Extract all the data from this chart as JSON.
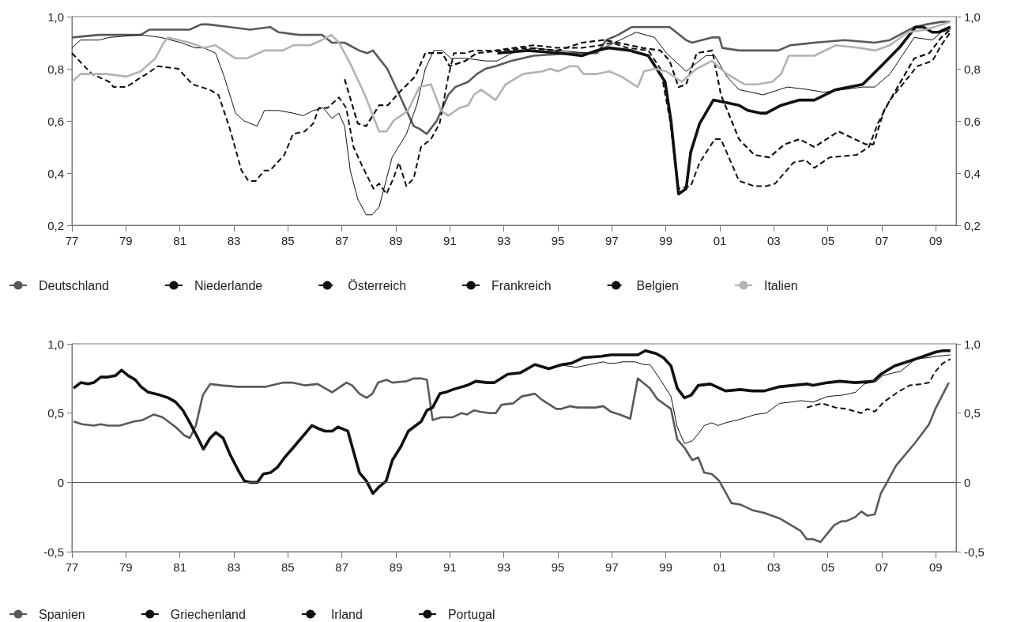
{
  "chart_data": [
    {
      "type": "line",
      "marker": "none",
      "legend": "bottom",
      "xlim": [
        1977,
        2009.75
      ],
      "xticks": [
        {
          "value": 1977,
          "label": "77"
        },
        {
          "value": 1979,
          "label": "79"
        },
        {
          "value": 1981,
          "label": "81"
        },
        {
          "value": 1983,
          "label": "83"
        },
        {
          "value": 1985,
          "label": "85"
        },
        {
          "value": 1987,
          "label": "87"
        },
        {
          "value": 1989,
          "label": "89"
        },
        {
          "value": 1991,
          "label": "91"
        },
        {
          "value": 1993,
          "label": "93"
        },
        {
          "value": 1995,
          "label": "95"
        },
        {
          "value": 1997,
          "label": "97"
        },
        {
          "value": 1999,
          "label": "99"
        },
        {
          "value": 2001,
          "label": "01"
        },
        {
          "value": 2003,
          "label": "03"
        },
        {
          "value": 2005,
          "label": "05"
        },
        {
          "value": 2007,
          "label": "07"
        },
        {
          "value": 2009,
          "label": "09"
        }
      ],
      "ylim": [
        0.2,
        1
      ],
      "yticks": [
        {
          "value": 0.2,
          "label": "0,2"
        },
        {
          "value": 0.4,
          "label": "0,4"
        },
        {
          "value": 0.6,
          "label": "0,6"
        },
        {
          "value": 0.8,
          "label": "0,8"
        },
        {
          "value": 1,
          "label": "1,0"
        }
      ],
      "y2lim": [
        0.2,
        1
      ],
      "y2ticks": [
        {
          "value": 0.2,
          "label": "0,2"
        },
        {
          "value": 0.4,
          "label": "0,4"
        },
        {
          "value": 0.6,
          "label": "0,6"
        },
        {
          "value": 0.8,
          "label": "0,8"
        },
        {
          "value": 1,
          "label": "1,0"
        }
      ],
      "series": [
        {
          "name": "Deutschland",
          "color": "#595959",
          "line_style": "solid",
          "x": [
            1977,
            1978,
            1979,
            1979.55,
            1979.87,
            1980.3,
            1980.72,
            1981.36,
            1981.79,
            1982.05,
            1982.85,
            1983.6,
            1984.34,
            1984.66,
            1985.4,
            1986.26,
            1986.63,
            1987.1,
            1987.64,
            1987.94,
            1988.15,
            1988.68,
            1989.13,
            1989.66,
            1989.87,
            1990.14,
            1990.51,
            1990.94,
            1991.2,
            1991.68,
            1992,
            1992.32,
            1992.69,
            1993.28,
            1994.1,
            1995.56,
            1996.45,
            1996.79,
            1997.23,
            1997.74,
            1998.46,
            1999.14,
            1999.75,
            1999.97,
            2000.7,
            2000.98,
            2001.09,
            2001.71,
            2002.27,
            2003.16,
            2003.61,
            2004.5,
            2005.62,
            2006.74,
            2007.3,
            2008.2,
            2008.64,
            2009.2,
            2009.54
          ],
          "values": [
            0.92,
            0.93,
            0.93,
            0.93,
            0.95,
            0.95,
            0.95,
            0.95,
            0.97,
            0.97,
            0.96,
            0.95,
            0.96,
            0.94,
            0.93,
            0.93,
            0.9,
            0.9,
            0.87,
            0.86,
            0.87,
            0.8,
            0.7,
            0.58,
            0.57,
            0.55,
            0.6,
            0.7,
            0.73,
            0.75,
            0.78,
            0.8,
            0.81,
            0.83,
            0.85,
            0.86,
            0.86,
            0.91,
            0.93,
            0.96,
            0.96,
            0.96,
            0.91,
            0.9,
            0.92,
            0.92,
            0.88,
            0.87,
            0.87,
            0.87,
            0.89,
            0.9,
            0.91,
            0.9,
            0.91,
            0.96,
            0.97,
            0.98,
            0.98
          ]
        },
        {
          "name": "Niederlande",
          "color": "#111111",
          "line_style": "solid",
          "x": [
            1992.76,
            1993.88,
            1995.11,
            1995.89,
            1996.45,
            1996.9,
            1997.68,
            1998.35,
            1998.97,
            1999.19,
            1999.47,
            1999.75,
            1999.92,
            2000.25,
            2000.76,
            2001.26,
            2001.71,
            2002.04,
            2002.49,
            2002.72,
            2003.27,
            2003.95,
            2004.5,
            2005.29,
            2006.29,
            2006.97,
            2007.64,
            2008.25,
            2008.53,
            2008.87,
            2009.09,
            2009.32,
            2009.54
          ],
          "values": [
            0.86,
            0.87,
            0.86,
            0.85,
            0.87,
            0.88,
            0.87,
            0.85,
            0.75,
            0.6,
            0.32,
            0.34,
            0.48,
            0.59,
            0.68,
            0.67,
            0.66,
            0.64,
            0.63,
            0.63,
            0.66,
            0.68,
            0.68,
            0.72,
            0.74,
            0.81,
            0.88,
            0.96,
            0.96,
            0.94,
            0.94,
            0.95,
            0.96
          ]
        },
        {
          "name": "Österreich",
          "color": "#111111",
          "line_style": "dashed",
          "x": [
            1977,
            1977.74,
            1978.38,
            1978.54,
            1979.02,
            1979.45,
            1979.77,
            1980.19,
            1980.94,
            1981.47,
            1982.1,
            1982.43,
            1982.85,
            1983.28,
            1983.54,
            1983.81,
            1984.13,
            1984.34,
            1984.87,
            1985.19,
            1985.62,
            1985.94,
            1986.15,
            1986.47,
            1986.89,
            1987.16,
            1987.43,
            1987.74,
            1988.17,
            1988.38,
            1988.65,
            1988.91,
            1989.11,
            1989.39,
            1989.66,
            1989.93,
            1990.3,
            1990.62,
            1990.94,
            1991.15,
            1991.57,
            1991.89,
            1992.64,
            1994.1,
            1995.0,
            1995.89,
            1996.56,
            1997.01,
            1997.57,
            1998.35,
            1998.8,
            1999.14,
            1999.47,
            1999.92,
            2000.25,
            2000.81,
            2001.04,
            2001.71,
            2002.27,
            2002.72,
            2003.05,
            2003.72,
            2004.17,
            2004.5,
            2005.06,
            2006.07,
            2006.52,
            2006.85,
            2007.3,
            2008.31,
            2008.87,
            2009.2,
            2009.54
          ],
          "values": [
            0.86,
            0.78,
            0.75,
            0.73,
            0.73,
            0.76,
            0.78,
            0.81,
            0.8,
            0.74,
            0.72,
            0.7,
            0.57,
            0.41,
            0.37,
            0.37,
            0.41,
            0.41,
            0.47,
            0.55,
            0.56,
            0.59,
            0.65,
            0.65,
            0.69,
            0.65,
            0.5,
            0.43,
            0.34,
            0.36,
            0.32,
            0.38,
            0.44,
            0.35,
            0.38,
            0.5,
            0.53,
            0.59,
            0.77,
            0.86,
            0.86,
            0.87,
            0.87,
            0.89,
            0.88,
            0.88,
            0.89,
            0.9,
            0.88,
            0.87,
            0.8,
            0.61,
            0.34,
            0.35,
            0.44,
            0.53,
            0.53,
            0.37,
            0.35,
            0.35,
            0.36,
            0.44,
            0.45,
            0.42,
            0.46,
            0.47,
            0.5,
            0.59,
            0.68,
            0.81,
            0.83,
            0.89,
            0.94
          ]
        },
        {
          "name": "Frankreich",
          "color": "#111111",
          "line_style": "solid",
          "x": [
            1977,
            1977.32,
            1978.01,
            1978.38,
            1979.55,
            1980.3,
            1981.04,
            1981.57,
            1981.89,
            1982.32,
            1982.64,
            1983.06,
            1983.38,
            1983.86,
            1984.13,
            1984.66,
            1985.19,
            1985.57,
            1985.94,
            1986.31,
            1986.63,
            1986.89,
            1987.1,
            1987.31,
            1987.59,
            1987.9,
            1988.12,
            1988.38,
            1988.86,
            1989.39,
            1989.77,
            1990.09,
            1990.4,
            1990.72,
            1991.04,
            1991.57,
            1992.32,
            1992.74,
            1993.3,
            1994.1,
            1995.0,
            1996.12,
            1996.9,
            1997.9,
            1998.58,
            1999.02,
            1999.75,
            2000.48,
            2000.81,
            2001.26,
            2001.71,
            2002.6,
            2003.5,
            2004.28,
            2004.84,
            2006.29,
            2006.74,
            2007.3,
            2008.2,
            2008.87,
            2009.2,
            2009.54
          ],
          "values": [
            0.88,
            0.91,
            0.91,
            0.92,
            0.93,
            0.92,
            0.9,
            0.88,
            0.88,
            0.86,
            0.77,
            0.63,
            0.6,
            0.58,
            0.64,
            0.64,
            0.63,
            0.62,
            0.64,
            0.65,
            0.61,
            0.63,
            0.58,
            0.41,
            0.3,
            0.24,
            0.24,
            0.27,
            0.46,
            0.55,
            0.66,
            0.8,
            0.87,
            0.87,
            0.84,
            0.84,
            0.83,
            0.83,
            0.86,
            0.88,
            0.87,
            0.86,
            0.89,
            0.94,
            0.92,
            0.86,
            0.79,
            0.85,
            0.85,
            0.77,
            0.72,
            0.7,
            0.73,
            0.72,
            0.71,
            0.73,
            0.73,
            0.78,
            0.92,
            0.91,
            0.94,
            0.95
          ]
        },
        {
          "name": "Belgien",
          "color": "#111111",
          "line_style": "dashed",
          "x": [
            1987.1,
            1987.59,
            1987.9,
            1988.38,
            1988.7,
            1989.13,
            1989.71,
            1990.09,
            1990.72,
            1990.99,
            1991.57,
            1991.99,
            1992.96,
            1993.88,
            1995.0,
            1995.89,
            1996.68,
            1997.23,
            1998.13,
            1998.8,
            1999.14,
            1999.47,
            1999.75,
            2000.14,
            2000.72,
            2001.04,
            2001.71,
            2002.27,
            2002.83,
            2003.39,
            2003.95,
            2004.5,
            2005.4,
            2006.41,
            2006.69,
            2007.08,
            2008.2,
            2008.76,
            2009.2,
            2009.54
          ],
          "values": [
            0.76,
            0.59,
            0.58,
            0.66,
            0.66,
            0.71,
            0.77,
            0.86,
            0.86,
            0.81,
            0.83,
            0.86,
            0.87,
            0.88,
            0.87,
            0.9,
            0.91,
            0.9,
            0.88,
            0.87,
            0.83,
            0.73,
            0.74,
            0.86,
            0.87,
            0.7,
            0.53,
            0.47,
            0.46,
            0.51,
            0.53,
            0.5,
            0.56,
            0.51,
            0.51,
            0.64,
            0.84,
            0.86,
            0.92,
            0.95
          ]
        },
        {
          "name": "Italien",
          "color": "#b3b3b3",
          "line_style": "solid",
          "x": [
            1977,
            1977.32,
            1978.28,
            1979.02,
            1979.55,
            1980.09,
            1980.4,
            1980.56,
            1981.36,
            1981.89,
            1982.32,
            1983.06,
            1983.49,
            1984.13,
            1984.82,
            1985.19,
            1985.83,
            1986.26,
            1986.61,
            1986.89,
            1987.31,
            1987.85,
            1988.38,
            1988.65,
            1988.91,
            1989.45,
            1989.87,
            1990.3,
            1990.67,
            1990.94,
            1991.36,
            1991.68,
            1991.89,
            1992.16,
            1992.69,
            1993.06,
            1993.71,
            1994.44,
            1994.72,
            1995.0,
            1995.44,
            1995.72,
            1995.95,
            1996.45,
            1996.9,
            1997.35,
            1997.96,
            1998.19,
            1998.58,
            1999.02,
            1999.58,
            2000.14,
            2000.7,
            2001.26,
            2001.93,
            2002.38,
            2002.94,
            2003.27,
            2003.55,
            2003.95,
            2004.5,
            2005.29,
            2006.18,
            2006.74,
            2007.3,
            2007.97,
            2008.64,
            2009.54
          ],
          "values": [
            0.75,
            0.78,
            0.78,
            0.77,
            0.79,
            0.84,
            0.9,
            0.92,
            0.9,
            0.88,
            0.89,
            0.84,
            0.84,
            0.87,
            0.87,
            0.89,
            0.89,
            0.91,
            0.93,
            0.9,
            0.82,
            0.7,
            0.56,
            0.56,
            0.6,
            0.64,
            0.73,
            0.74,
            0.64,
            0.62,
            0.65,
            0.66,
            0.7,
            0.72,
            0.68,
            0.74,
            0.78,
            0.79,
            0.8,
            0.79,
            0.81,
            0.81,
            0.78,
            0.78,
            0.79,
            0.77,
            0.73,
            0.79,
            0.8,
            0.79,
            0.75,
            0.8,
            0.83,
            0.78,
            0.74,
            0.74,
            0.75,
            0.78,
            0.85,
            0.85,
            0.85,
            0.89,
            0.88,
            0.87,
            0.89,
            0.94,
            0.95,
            0.98
          ]
        }
      ]
    },
    {
      "type": "line",
      "marker": "none",
      "legend": "bottom",
      "xlim": [
        1977,
        2009.75
      ],
      "xticks": [
        {
          "value": 1977,
          "label": "77"
        },
        {
          "value": 1979,
          "label": "79"
        },
        {
          "value": 1981,
          "label": "81"
        },
        {
          "value": 1983,
          "label": "83"
        },
        {
          "value": 1985,
          "label": "85"
        },
        {
          "value": 1987,
          "label": "87"
        },
        {
          "value": 1989,
          "label": "89"
        },
        {
          "value": 1991,
          "label": "91"
        },
        {
          "value": 1993,
          "label": "93"
        },
        {
          "value": 1995,
          "label": "95"
        },
        {
          "value": 1997,
          "label": "97"
        },
        {
          "value": 1999,
          "label": "99"
        },
        {
          "value": 2001,
          "label": "01"
        },
        {
          "value": 2003,
          "label": "03"
        },
        {
          "value": 2005,
          "label": "05"
        },
        {
          "value": 2007,
          "label": "07"
        },
        {
          "value": 2009,
          "label": "09"
        }
      ],
      "ylim": [
        -0.5,
        1
      ],
      "yticks": [
        {
          "value": -0.5,
          "label": "-0,5"
        },
        0,
        {
          "value": 0.5,
          "label": "0,5"
        },
        {
          "value": 1,
          "label": "1,0"
        }
      ],
      "y2lim": [
        -0.5,
        1
      ],
      "y2ticks": [
        {
          "value": -0.5,
          "label": "-0,5"
        },
        0,
        {
          "value": 0.5,
          "label": "0,5"
        },
        {
          "value": 1,
          "label": "1,0"
        }
      ],
      "ref_lines": [
        {
          "axis": "y",
          "value": 0,
          "color": "#555555",
          "line_style": "solid"
        }
      ],
      "series": [
        {
          "name": "Spanien",
          "color": "#595959",
          "line_style": "solid",
          "x": [
            1977.06,
            1977.38,
            1977.81,
            1978.07,
            1978.34,
            1978.77,
            1979.3,
            1979.62,
            1980.04,
            1980.36,
            1980.84,
            1981.16,
            1981.37,
            1981.59,
            1981.85,
            1982.12,
            1982.54,
            1983.13,
            1984.19,
            1984.83,
            1985.15,
            1985.63,
            1986.1,
            1986.37,
            1986.64,
            1987.17,
            1987.38,
            1987.65,
            1987.91,
            1988.13,
            1988.34,
            1988.66,
            1988.87,
            1989.4,
            1989.67,
            1989.94,
            1990.15,
            1990.36,
            1990.68,
            1991.11,
            1991.43,
            1991.64,
            1991.9,
            1992.12,
            1992.49,
            1992.7,
            1992.91,
            1993.34,
            1993.66,
            1994.15,
            1994.38,
            1994.94,
            1995.11,
            1995.44,
            1995.72,
            1996.4,
            1996.68,
            1996.96,
            1997.29,
            1997.68,
            1997.96,
            1998.4,
            1998.69,
            1999.19,
            1999.42,
            1999.69,
            1999.98,
            2000.2,
            2000.42,
            2000.7,
            2000.98,
            2001.43,
            2001.76,
            2002.2,
            2002.65,
            2002.93,
            2003.21,
            2003.99,
            2004.22,
            2004.45,
            2004.73,
            2005.23,
            2005.51,
            2005.68,
            2006.02,
            2006.24,
            2006.46,
            2006.74,
            2006.96,
            2007.19,
            2007.52,
            2008.25,
            2008.75,
            2008.98,
            2009.48
          ],
          "values": [
            0.44,
            0.42,
            0.41,
            0.42,
            0.41,
            0.41,
            0.44,
            0.45,
            0.49,
            0.47,
            0.4,
            0.34,
            0.32,
            0.41,
            0.63,
            0.71,
            0.7,
            0.69,
            0.69,
            0.72,
            0.72,
            0.7,
            0.71,
            0.68,
            0.65,
            0.72,
            0.7,
            0.64,
            0.61,
            0.64,
            0.72,
            0.74,
            0.72,
            0.73,
            0.75,
            0.75,
            0.74,
            0.45,
            0.47,
            0.47,
            0.5,
            0.49,
            0.52,
            0.51,
            0.5,
            0.5,
            0.56,
            0.57,
            0.62,
            0.64,
            0.6,
            0.53,
            0.53,
            0.55,
            0.54,
            0.54,
            0.55,
            0.51,
            0.49,
            0.46,
            0.75,
            0.68,
            0.6,
            0.53,
            0.31,
            0.25,
            0.16,
            0.18,
            0.07,
            0.06,
            0.01,
            -0.15,
            -0.16,
            -0.2,
            -0.22,
            -0.24,
            -0.26,
            -0.35,
            -0.41,
            -0.41,
            -0.43,
            -0.31,
            -0.28,
            -0.28,
            -0.25,
            -0.21,
            -0.24,
            -0.23,
            -0.08,
            0,
            0.12,
            0.29,
            0.42,
            0.53,
            0.72
          ]
        },
        {
          "name": "Griechenland",
          "color": "#111111",
          "line_style": "solid",
          "x": [
            1977.06,
            1977.33,
            1977.6,
            1977.81,
            1978.07,
            1978.34,
            1978.61,
            1978.84,
            1979.09,
            1979.35,
            1979.56,
            1979.83,
            1980.26,
            1980.57,
            1980.84,
            1981.11,
            1981.37,
            1981.64,
            1981.87,
            1982.12,
            1982.33,
            1982.6,
            1982.86,
            1983.18,
            1983.39,
            1983.6,
            1983.87,
            1984.09,
            1984.35,
            1984.62,
            1984.88,
            1985.15,
            1985.41,
            1985.89,
            1986.11,
            1986.37,
            1986.64,
            1986.85,
            1987.22,
            1987.65,
            1987.91,
            1988.15,
            1988.39,
            1988.64,
            1988.87,
            1989.19,
            1989.46,
            1989.94,
            1990.15,
            1990.36,
            1990.63,
            1990.84,
            1991.11,
            1991.64,
            1991.96,
            1992.38,
            1992.65,
            1993.14,
            1993.6,
            1994.15,
            1994.66,
            1995.16,
            1995.5,
            1995.94,
            1996.62,
            1996.96,
            1997.4,
            1997.96,
            1998.24,
            1998.63,
            1998.91,
            1999.19,
            1999.42,
            1999.69,
            1999.94,
            2000.2,
            2000.65,
            2001.21,
            2001.76,
            2002.2,
            2002.65,
            2003.21,
            2004.22,
            2004.45,
            2005,
            2005.44,
            2006.02,
            2006.69,
            2006.96,
            2007.47,
            2008.25,
            2008.7,
            2008.98,
            2009.26,
            2009.54
          ],
          "values": [
            0.68,
            0.72,
            0.71,
            0.72,
            0.76,
            0.76,
            0.77,
            0.81,
            0.77,
            0.74,
            0.69,
            0.65,
            0.63,
            0.61,
            0.58,
            0.52,
            0.43,
            0.33,
            0.24,
            0.32,
            0.36,
            0.32,
            0.2,
            0.08,
            0.01,
            0,
            0,
            0.06,
            0.07,
            0.11,
            0.18,
            0.24,
            0.3,
            0.41,
            0.39,
            0.37,
            0.37,
            0.4,
            0.37,
            0.07,
            0.01,
            -0.08,
            -0.03,
            0.01,
            0.16,
            0.26,
            0.37,
            0.44,
            0.52,
            0.54,
            0.64,
            0.65,
            0.67,
            0.7,
            0.73,
            0.72,
            0.72,
            0.78,
            0.79,
            0.85,
            0.82,
            0.85,
            0.86,
            0.9,
            0.91,
            0.92,
            0.92,
            0.92,
            0.95,
            0.93,
            0.9,
            0.84,
            0.68,
            0.61,
            0.63,
            0.7,
            0.71,
            0.66,
            0.67,
            0.66,
            0.66,
            0.69,
            0.71,
            0.7,
            0.72,
            0.73,
            0.72,
            0.73,
            0.78,
            0.84,
            0.89,
            0.92,
            0.94,
            0.95,
            0.95
          ]
        },
        {
          "name": "Irland",
          "color": "#111111",
          "line_style": "dashed",
          "x": [
            2004.22,
            2004.78,
            2005.29,
            2005.68,
            2006.24,
            2006.46,
            2006.74,
            2007.07,
            2007.58,
            2008.03,
            2008.47,
            2008.75,
            2008.98,
            2009.26,
            2009.54
          ],
          "values": [
            0.54,
            0.57,
            0.54,
            0.53,
            0.5,
            0.53,
            0.51,
            0.58,
            0.65,
            0.7,
            0.71,
            0.72,
            0.8,
            0.86,
            0.89
          ]
        },
        {
          "name": "Portugal",
          "color": "#111111",
          "line_style": "solid",
          "x": [
            1995.05,
            1995.67,
            1996.18,
            1996.68,
            1996.85,
            1997.13,
            1997.4,
            1997.85,
            1998.19,
            1998.41,
            1998.8,
            1999.19,
            1999.42,
            1999.69,
            1999.98,
            2000.2,
            2000.42,
            2000.7,
            2000.93,
            2001.21,
            2001.65,
            2001.99,
            2002.32,
            2002.72,
            2003.21,
            2003.66,
            2003.99,
            2004.45,
            2005,
            2005.56,
            2006.02,
            2006.35,
            2006.8,
            2007.02,
            2007.42,
            2007.69,
            2008.25,
            2008.7,
            2009.03,
            2009.54
          ],
          "values": [
            0.85,
            0.83,
            0.85,
            0.87,
            0.86,
            0.86,
            0.87,
            0.87,
            0.85,
            0.85,
            0.74,
            0.62,
            0.4,
            0.28,
            0.3,
            0.35,
            0.41,
            0.43,
            0.41,
            0.43,
            0.45,
            0.47,
            0.49,
            0.5,
            0.57,
            0.58,
            0.59,
            0.58,
            0.62,
            0.63,
            0.65,
            0.71,
            0.73,
            0.77,
            0.79,
            0.8,
            0.89,
            0.9,
            0.91,
            0.92
          ]
        }
      ]
    }
  ]
}
